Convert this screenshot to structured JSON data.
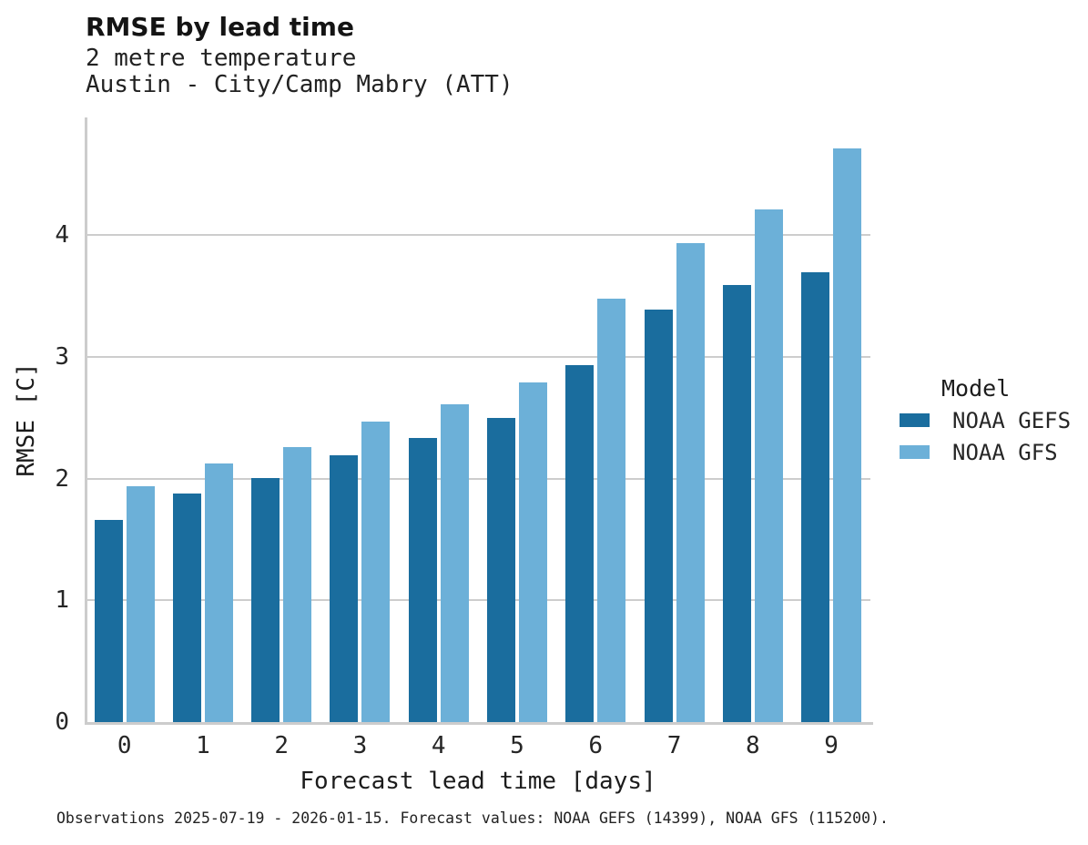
{
  "header": {
    "title": "RMSE by lead time",
    "subtitle1": "2 metre temperature",
    "subtitle2": "Austin - City/Camp Mabry (ATT)"
  },
  "chart_data": {
    "type": "bar",
    "title": "RMSE by lead time",
    "subtitle_lines": [
      "2 metre temperature",
      "Austin - City/Camp Mabry (ATT)"
    ],
    "categories": [
      "0",
      "1",
      "2",
      "3",
      "4",
      "5",
      "6",
      "7",
      "8",
      "9"
    ],
    "series": [
      {
        "name": "NOAA GEFS",
        "color": "#1a6d9e",
        "values": [
          1.66,
          1.88,
          2.0,
          2.19,
          2.33,
          2.5,
          2.93,
          3.39,
          3.59,
          3.69
        ]
      },
      {
        "name": "NOAA GFS",
        "color": "#6cb0d8",
        "values": [
          1.94,
          2.12,
          2.26,
          2.47,
          2.61,
          2.79,
          3.48,
          3.93,
          4.21,
          4.71
        ]
      }
    ],
    "xlabel": "Forecast lead time [days]",
    "ylabel": "RMSE [C]",
    "ylim": [
      0,
      4.96
    ],
    "yticks": [
      0,
      1,
      2,
      3,
      4
    ],
    "grid": "horizontal-only",
    "legend": {
      "title": "Model",
      "position": "right"
    }
  },
  "footer": {
    "caption": "Observations 2025-07-19 - 2026-01-15. Forecast values: NOAA GEFS (14399), NOAA GFS (115200)."
  },
  "colors": {
    "grid": "#cdcdcd",
    "spine": "#cccccc",
    "gefs": "#1a6d9e",
    "gfs": "#6cb0d8"
  }
}
